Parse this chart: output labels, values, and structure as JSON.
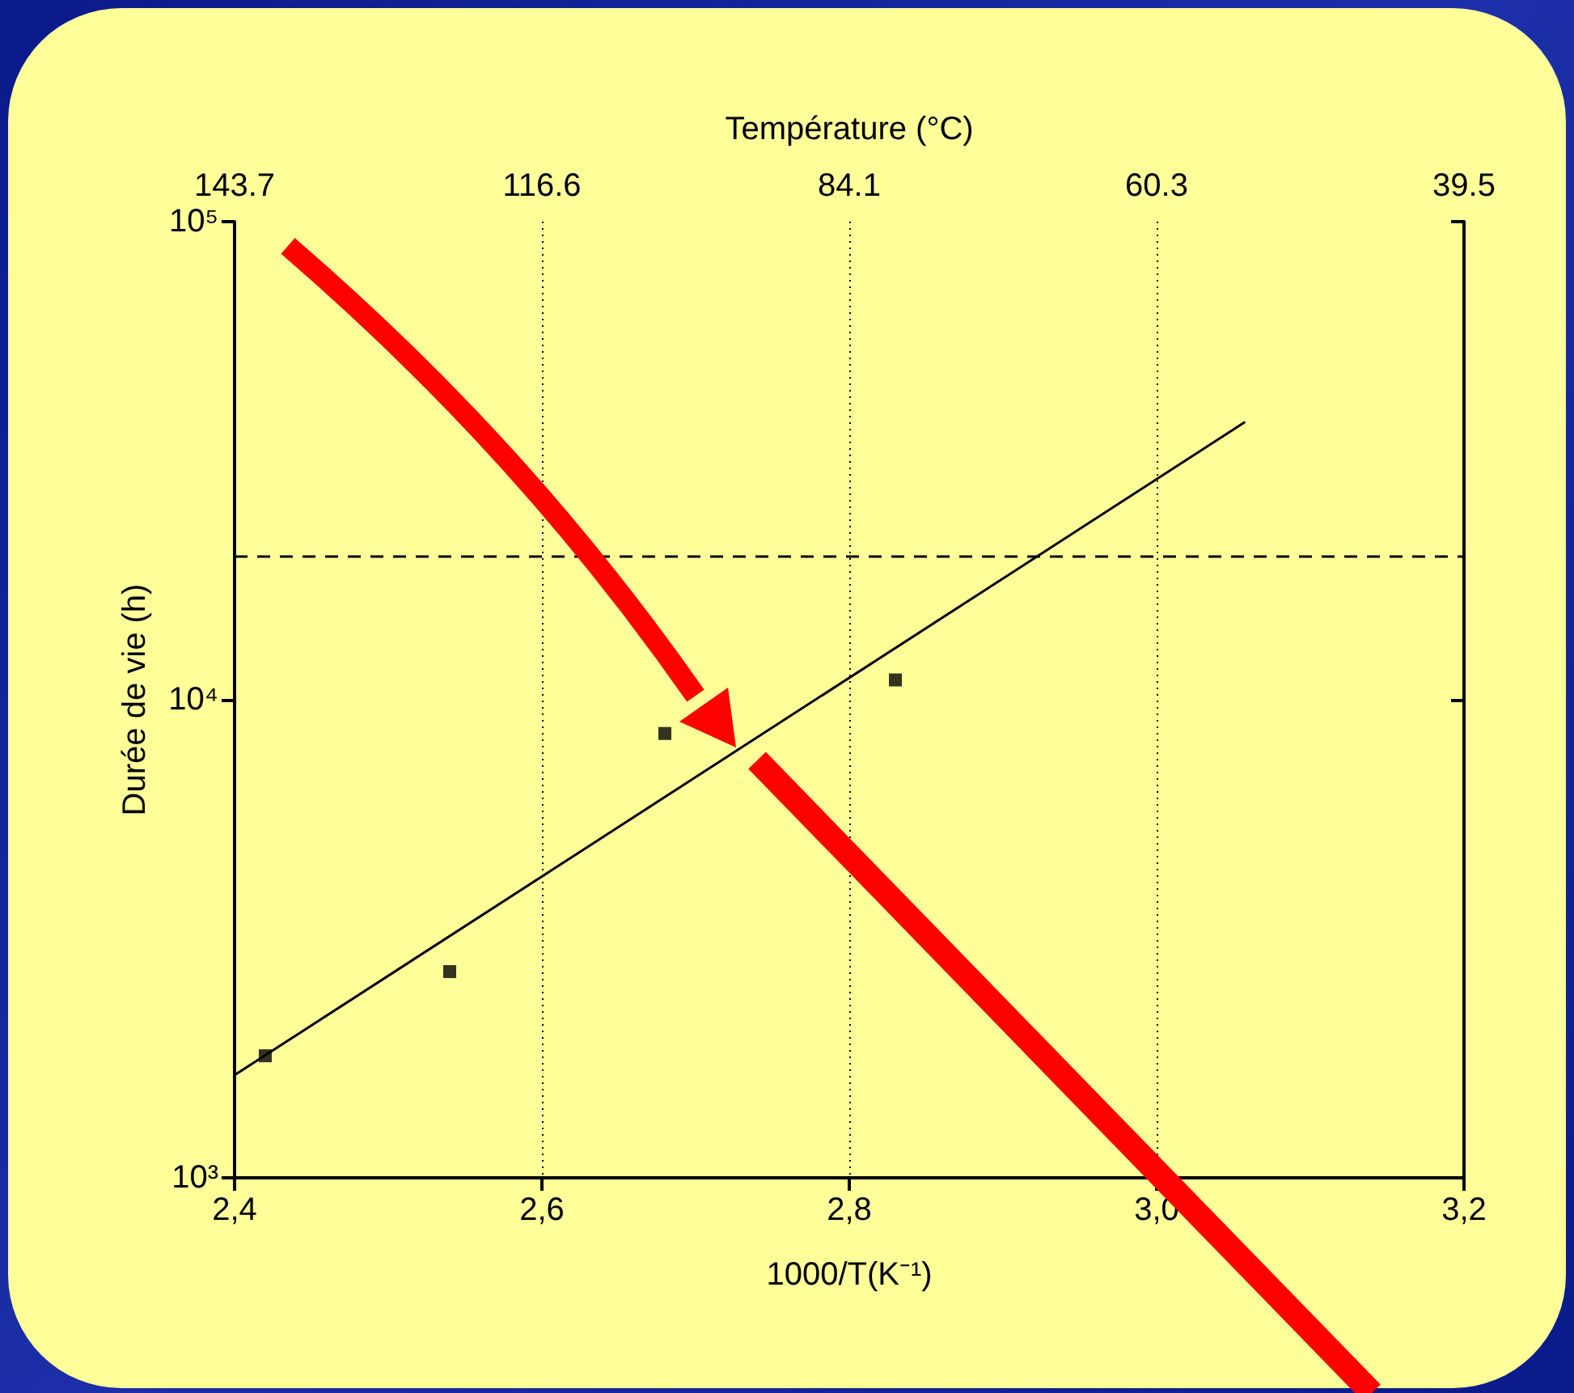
{
  "chart_data": {
    "type": "scatter",
    "xlabel": "1000/T(K⁻¹)",
    "ylabel": "Durée de vie (h)",
    "x2label": "Température (°C)",
    "series": [
      {
        "color": "#000000",
        "marker": "square",
        "x": [
          2.42,
          2.54,
          2.68,
          2.83
        ],
        "values": [
          1800,
          2700,
          8500,
          11000
        ]
      },
      {
        "type": "line",
        "color": "#000000",
        "marker": "none",
        "line_style": "solid",
        "x": [
          2.4,
          3.057
        ],
        "values": [
          1640,
          38000
        ]
      }
    ],
    "log": "y",
    "xlim": [
      2.4,
      3.2
    ],
    "xticks": [
      {
        "value": 2.4,
        "label": "2,4"
      },
      {
        "value": 2.6,
        "label": "2,6"
      },
      {
        "value": 2.8,
        "label": "2,8"
      },
      {
        "value": 3.0,
        "label": "3,0"
      },
      {
        "value": 3.2,
        "label": "3,2"
      }
    ],
    "annotations": [
      "143.7",
      "116.6",
      "84.1",
      "60.3",
      "39.5"
    ],
    "ylim": [
      1000,
      100000
    ],
    "yticks": [
      {
        "value": 1000,
        "label": "10³"
      },
      {
        "value": 10000,
        "label": "10⁴"
      },
      {
        "value": 100000,
        "label": "10⁵"
      }
    ],
    "ref_lines": [
      {
        "axis": "y",
        "value": 20000,
        "label": null,
        "color": "#000000",
        "line_style": "dashed"
      }
    ],
    "grid": "x"
  }
}
